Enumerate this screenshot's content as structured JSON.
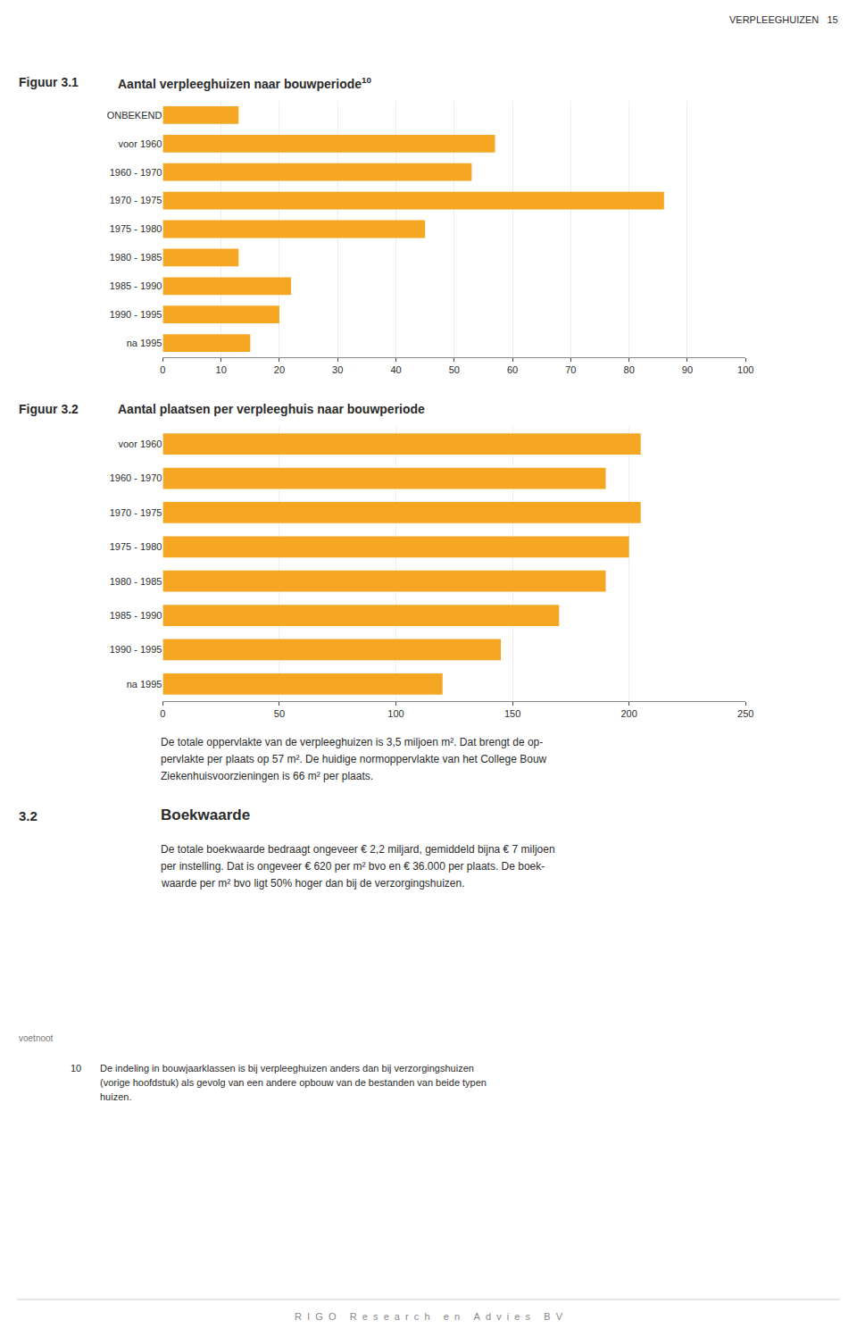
{
  "header": {
    "left": "VERPLEEGHUIZEN",
    "right": "15"
  },
  "chart_data": [
    {
      "type": "bar",
      "orientation": "horizontal",
      "label": "Figuur 3.1",
      "title": "Aantal verpleeghuizen naar bouwperiode",
      "title_superscript": "10",
      "categories": [
        "ONBEKEND",
        "voor 1960",
        "1960 - 1970",
        "1970 - 1975",
        "1975 - 1980",
        "1980 - 1985",
        "1985 - 1990",
        "1990 - 1995",
        "na 1995"
      ],
      "values": [
        13,
        57,
        53,
        86,
        45,
        13,
        22,
        20,
        15
      ],
      "color": "#F5A623",
      "xlim": [
        0,
        100
      ],
      "xticks": [
        0,
        10,
        20,
        30,
        40,
        50,
        60,
        70,
        80,
        90,
        100
      ],
      "grid": true
    },
    {
      "type": "bar",
      "orientation": "horizontal",
      "label": "Figuur 3.2",
      "title": "Aantal plaatsen per verpleeghuis naar bouwperiode",
      "categories": [
        "voor 1960",
        "1960 - 1970",
        "1970 - 1975",
        "1975 - 1980",
        "1980 - 1985",
        "1985 - 1990",
        "1990 - 1995",
        "na 1995"
      ],
      "values": [
        205,
        190,
        205,
        200,
        190,
        170,
        145,
        120
      ],
      "color": "#F5A623",
      "xlim": [
        0,
        250
      ],
      "xticks": [
        0,
        50,
        100,
        150,
        200,
        250
      ],
      "grid": true
    }
  ],
  "paragraph1": [
    "De totale oppervlakte van de verpleeghuizen is 3,5 miljoen m². Dat brengt de op-",
    "pervlakte per plaats op 57 m². De huidige normoppervlakte van het College Bouw",
    "Ziekenhuisvoorzieningen is 66 m² per plaats."
  ],
  "section": {
    "number": "3.2",
    "title": "Boekwaarde"
  },
  "paragraph2": [
    "De totale boekwaarde bedraagt ongeveer € 2,2 miljard, gemiddeld bijna € 7 miljoen",
    "per instelling. Dat is ongeveer € 620 per m² bvo en € 36.000 per plaats. De boek-",
    "waarde per m² bvo ligt 50% hoger dan bij de verzorgingshuizen."
  ],
  "footnote": {
    "label": "voetnoot",
    "number": "10",
    "lines": [
      "De indeling in bouwjaarklassen is bij verpleeghuizen anders dan bij verzorgingshuizen",
      "(vorige hoofdstuk) als gevolg van een andere opbouw van de bestanden van beide typen",
      "huizen."
    ]
  },
  "footer": "R  I  G  O     R  e  s  e  a  r  c  h     e  n     A  d  v  i  e  s     B  V"
}
